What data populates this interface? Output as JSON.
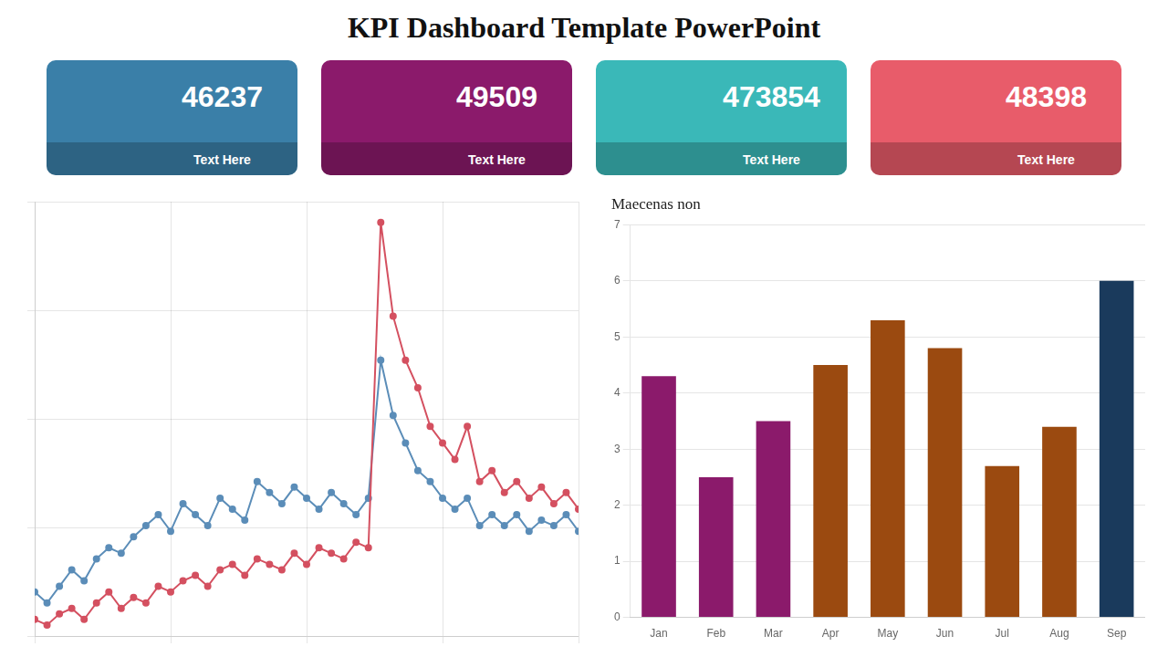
{
  "chart_data": [
    {
      "type": "kpi",
      "title": "KPI Dashboard Template PowerPoint",
      "categories": [
        "Text Here",
        "Text Here",
        "Text Here",
        "Text Here"
      ],
      "values": [
        46237,
        49509,
        473854,
        48398
      ],
      "colors": [
        "#3a7fa8",
        "#8b1a6b",
        "#3ab8b8",
        "#e85c6a"
      ]
    },
    {
      "type": "line",
      "x": [
        0,
        1,
        2,
        3,
        4,
        5,
        6,
        7,
        8,
        9,
        10,
        11,
        12,
        13,
        14,
        15,
        16,
        17,
        18,
        19,
        20,
        21,
        22,
        23,
        24,
        25,
        26,
        27,
        28,
        29,
        30,
        31,
        32,
        33,
        34,
        35,
        36,
        37,
        38,
        39,
        40,
        41,
        42,
        43,
        44
      ],
      "series": [
        {
          "color": "#d45060",
          "values": [
            0.3,
            0.2,
            0.4,
            0.5,
            0.3,
            0.6,
            0.8,
            0.5,
            0.7,
            0.6,
            0.9,
            0.8,
            1.0,
            1.1,
            0.9,
            1.2,
            1.3,
            1.1,
            1.4,
            1.3,
            1.2,
            1.5,
            1.3,
            1.6,
            1.5,
            1.4,
            1.7,
            1.6,
            7.5,
            5.8,
            5.0,
            4.5,
            3.8,
            3.5,
            3.2,
            3.8,
            2.8,
            3.0,
            2.6,
            2.8,
            2.5,
            2.7,
            2.4,
            2.6,
            2.3
          ]
        },
        {
          "color": "#5b8db8",
          "values": [
            0.8,
            0.6,
            0.9,
            1.2,
            1.0,
            1.4,
            1.6,
            1.5,
            1.8,
            2.0,
            2.2,
            1.9,
            2.4,
            2.2,
            2.0,
            2.5,
            2.3,
            2.1,
            2.8,
            2.6,
            2.4,
            2.7,
            2.5,
            2.3,
            2.6,
            2.4,
            2.2,
            2.5,
            5.0,
            4.0,
            3.5,
            3.0,
            2.8,
            2.5,
            2.3,
            2.5,
            2.0,
            2.2,
            2.0,
            2.2,
            1.9,
            2.1,
            2.0,
            2.2,
            1.9
          ]
        }
      ],
      "marker": "circle",
      "xlim": [
        0,
        44
      ],
      "xticks": [
        0,
        11,
        22,
        33,
        44
      ],
      "ylim": [
        0,
        7.875
      ],
      "yticks": [
        0,
        1.96875,
        3.9375,
        5.90625,
        7.875
      ],
      "grid": true,
      "tick_labels": false
    },
    {
      "type": "bar",
      "title": "Maecenas non",
      "categories": [
        "Jan",
        "Feb",
        "Mar",
        "Apr",
        "May",
        "Jun",
        "Jul",
        "Aug",
        "Sep"
      ],
      "values": [
        4.3,
        2.5,
        3.5,
        4.5,
        5.3,
        4.8,
        2.7,
        3.4,
        6.0
      ],
      "colors": [
        "#8b1a6b",
        "#8b1a6b",
        "#8b1a6b",
        "#9b4a10",
        "#9b4a10",
        "#9b4a10",
        "#9b4a10",
        "#9b4a10",
        "#1a3a5c"
      ],
      "ylim": [
        0,
        7
      ],
      "yticks": [
        0,
        1,
        2,
        3,
        4,
        5,
        6,
        7
      ],
      "grid": true
    }
  ]
}
